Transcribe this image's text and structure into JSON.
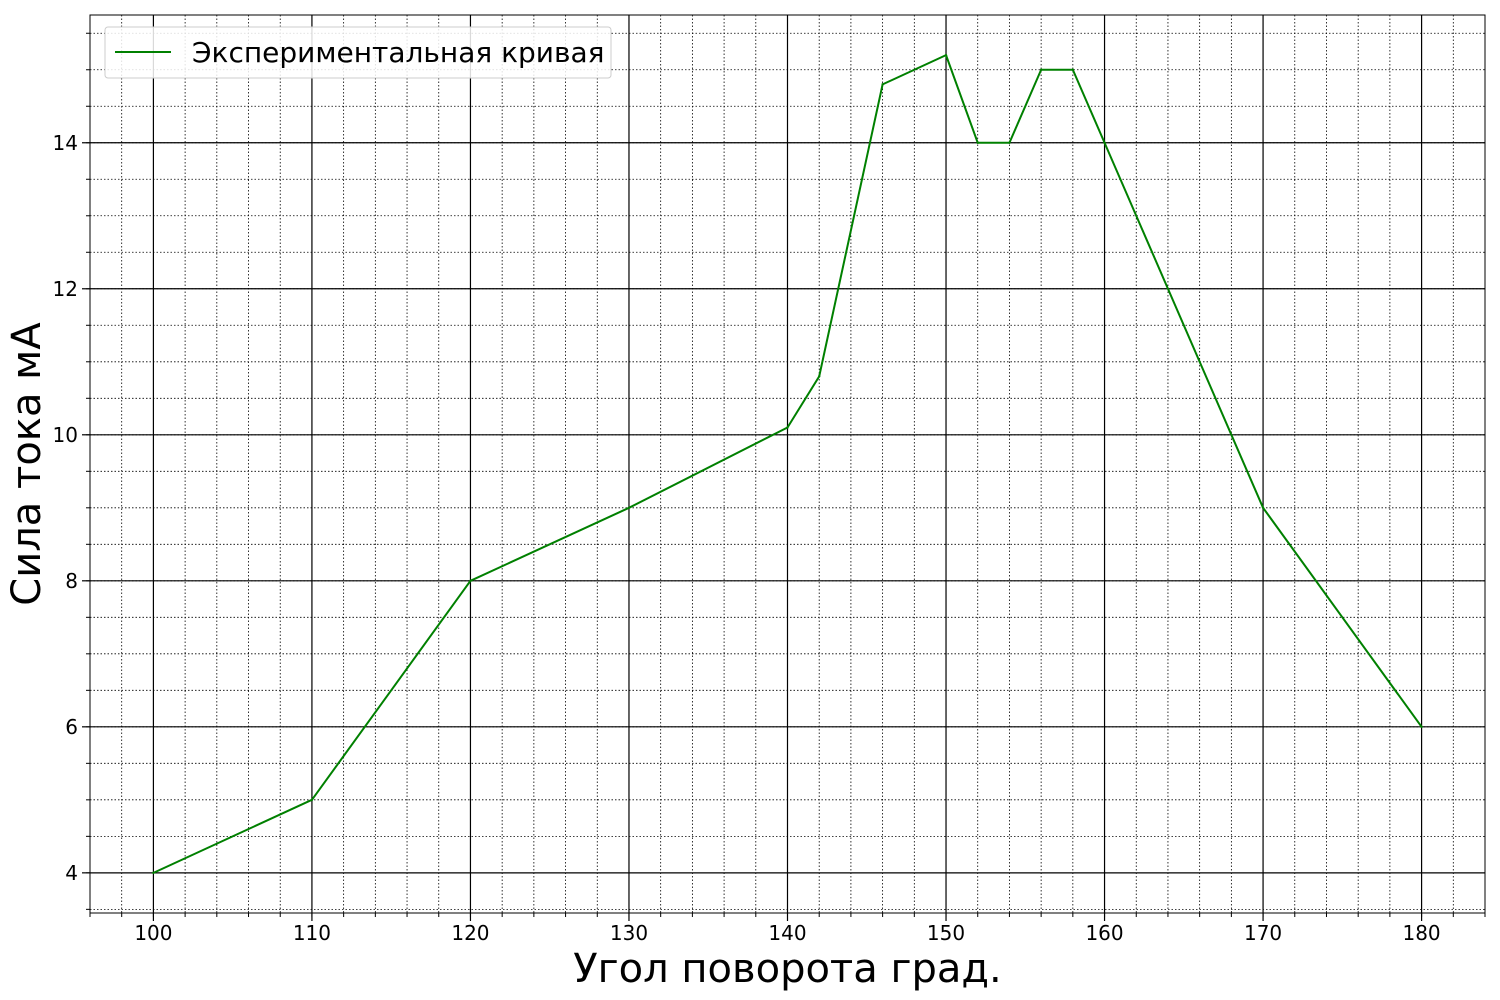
{
  "chart_data": {
    "type": "line",
    "xlabel": "Угол поворота град.",
    "ylabel": "Сила тока мА",
    "xlim": [
      96,
      184
    ],
    "ylim": [
      3.45,
      15.75
    ],
    "x_ticks": [
      100,
      110,
      120,
      130,
      140,
      150,
      160,
      170,
      180
    ],
    "y_ticks": [
      4,
      6,
      8,
      10,
      12,
      14
    ],
    "x_minor_step": 2,
    "y_minor_step": 0.5,
    "grid": {
      "major": "solid",
      "minor": "dotted"
    },
    "legend": {
      "position": "top-left"
    },
    "series": [
      {
        "name": "Экспериментальная кривая",
        "color": "#008000",
        "x": [
          100,
          110,
          120,
          130,
          140,
          142,
          146,
          150,
          152,
          154,
          156,
          158,
          160,
          170,
          180
        ],
        "y": [
          4,
          5,
          8,
          9,
          10.1,
          10.8,
          14.8,
          15.2,
          14,
          14,
          15,
          15,
          14,
          9,
          6
        ]
      }
    ]
  }
}
